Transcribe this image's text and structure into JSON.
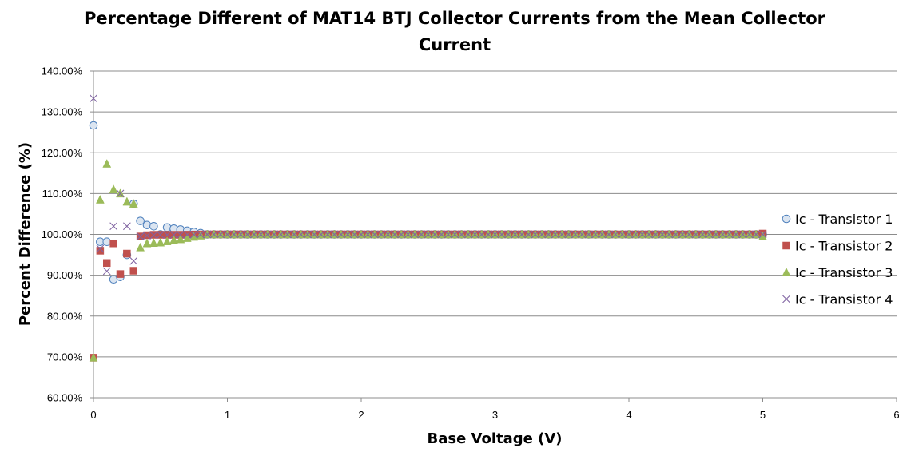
{
  "chart_data": {
    "type": "scatter",
    "title_lines": [
      "Percentage Different of MAT14 BTJ Collector Currents from the Mean Collector",
      "Current"
    ],
    "xlabel": "Base Voltage (V)",
    "ylabel": "Percent Difference (%)",
    "xlim": [
      0,
      6
    ],
    "ylim": [
      60,
      140
    ],
    "x_ticks": [
      0,
      1,
      2,
      3,
      4,
      5,
      6
    ],
    "y_ticks": [
      60,
      70,
      80,
      90,
      100,
      110,
      120,
      130,
      140
    ],
    "y_tick_labels": [
      "60.00%",
      "70.00%",
      "80.00%",
      "90.00%",
      "100.00%",
      "110.00%",
      "120.00%",
      "130.00%",
      "140.00%"
    ],
    "grid": "horizontal",
    "legend": "right",
    "x_step": 0.05,
    "x_end": 5.0,
    "series": [
      {
        "name": "Ic - Transistor 1",
        "marker": "circle",
        "color": "#4f81bd",
        "fill": "#dbe5f1",
        "initial_y": [
          126.7,
          98.2,
          98.2,
          89.0,
          89.6,
          95.0,
          107.5,
          103.3,
          102.3,
          102.0,
          100.0,
          101.7,
          101.4,
          101.2
        ],
        "final_y": 100.0
      },
      {
        "name": "Ic - Transistor 2",
        "marker": "square",
        "color": "#c0504d",
        "fill": "#c0504d",
        "initial_y": [
          69.8,
          96.0,
          93.0,
          97.8,
          90.3,
          95.3,
          91.1,
          99.5,
          99.8,
          99.9,
          99.9,
          99.9,
          99.9,
          99.9
        ],
        "final_y": 100.2
      },
      {
        "name": "Ic - Transistor 3",
        "marker": "triangle",
        "color": "#9bbb59",
        "fill": "#9bbb59",
        "initial_y": [
          69.8,
          108.5,
          117.3,
          111.0,
          110.0,
          108.0,
          107.5,
          96.8,
          97.8,
          97.9,
          98.0,
          98.3,
          98.6,
          98.8
        ],
        "final_y": 99.5
      },
      {
        "name": "Ic - Transistor 4",
        "marker": "x",
        "color": "#8064a2",
        "fill": "none",
        "initial_y": [
          133.3,
          96.5,
          91.0,
          102.0,
          110.0,
          102.0,
          93.5,
          99.5,
          99.7,
          99.8,
          99.9,
          99.9,
          99.9,
          99.9
        ],
        "final_y": 100.0
      }
    ]
  }
}
